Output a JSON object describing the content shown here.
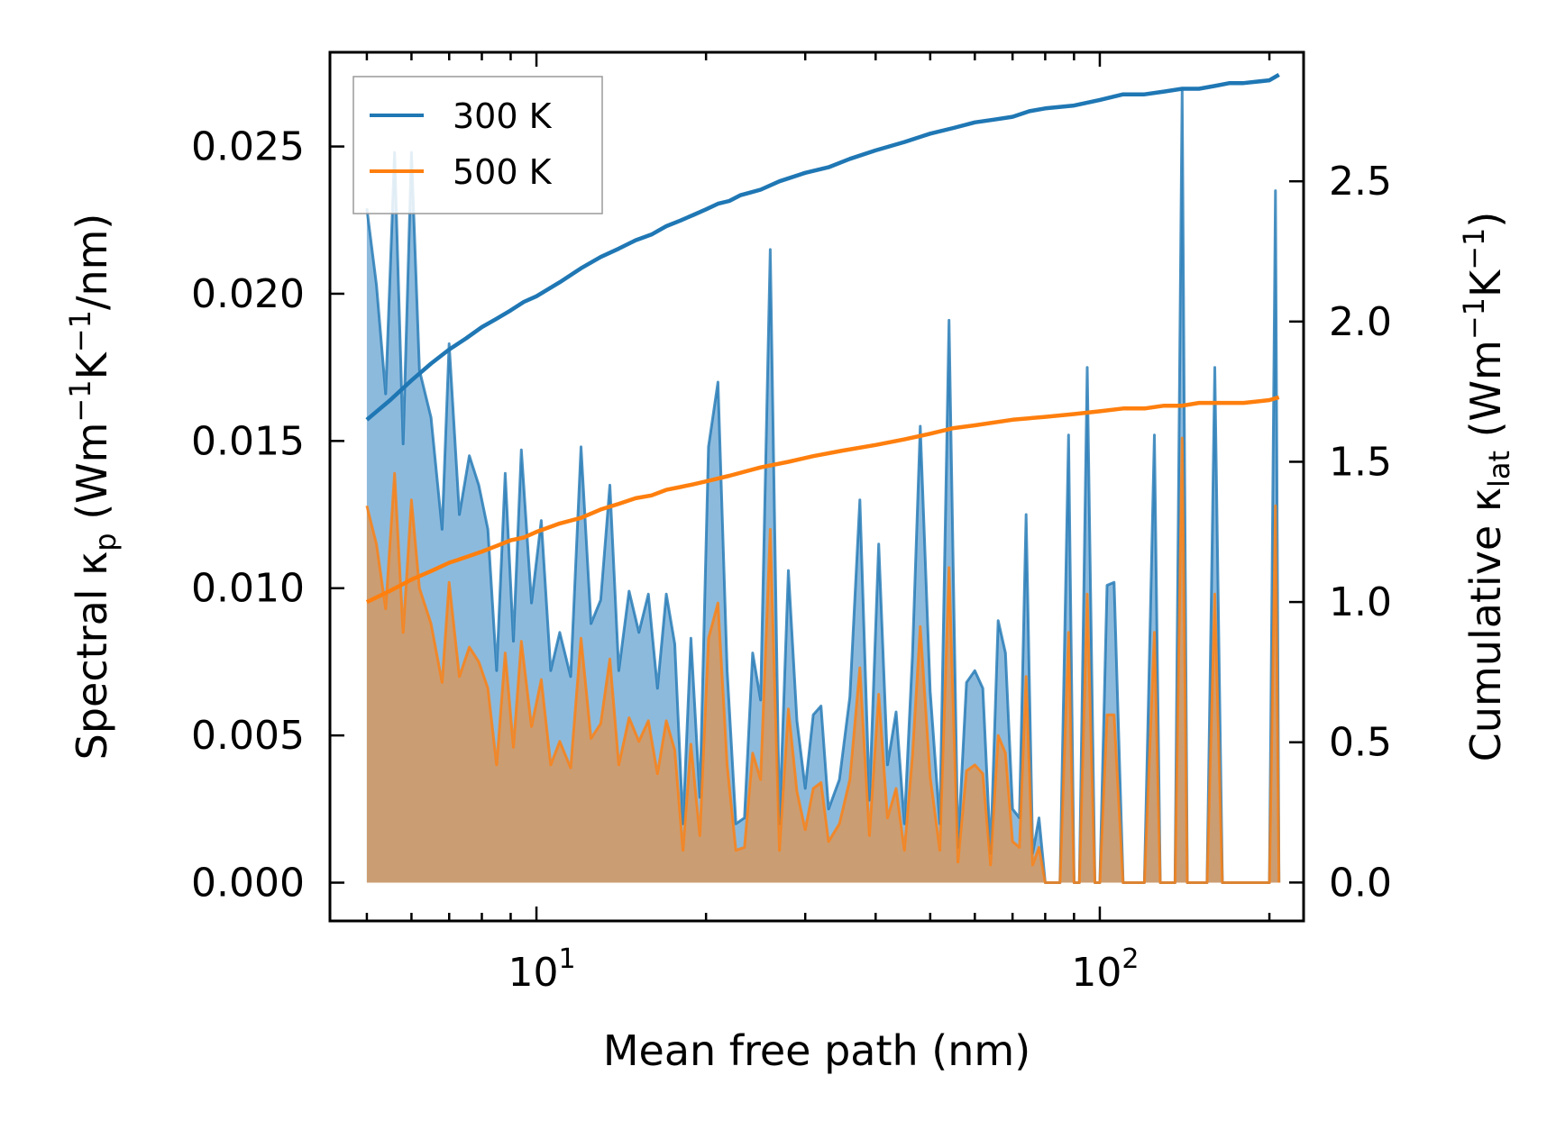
{
  "chart_data": {
    "type": "line",
    "title": "",
    "xlabel": "Mean free path (nm)",
    "xscale": "log",
    "xlim": [
      4.3,
      230
    ],
    "ylabel_left": {
      "main": "Spectral κ",
      "sub": "p",
      "rest": " (Wm",
      "sup1": "−1",
      "mid": "K",
      "sup2": "−1",
      "end": "/nm)"
    },
    "ylabel_right": {
      "main": "Cumulative κ",
      "sub": "lat",
      "rest": " (Wm",
      "sup1": "−1",
      "mid": "K",
      "sup2": "−1",
      "end": ")"
    },
    "ylim_left": [
      -0.0013,
      0.0282
    ],
    "ylim_right": [
      -0.137,
      2.96
    ],
    "x_ticks": [
      {
        "value": 10,
        "base": "10",
        "exp": "1"
      },
      {
        "value": 100,
        "base": "10",
        "exp": "2"
      }
    ],
    "y_left_ticks": [
      "0.000",
      "0.005",
      "0.010",
      "0.015",
      "0.020",
      "0.025"
    ],
    "y_left_tick_values": [
      0,
      0.005,
      0.01,
      0.015,
      0.02,
      0.025
    ],
    "y_right_ticks": [
      "0.0",
      "0.5",
      "1.0",
      "1.5",
      "2.0",
      "2.5"
    ],
    "y_right_tick_values": [
      0,
      0.5,
      1.0,
      1.5,
      2.0,
      2.5
    ],
    "legend": {
      "position": "upper-left",
      "entries": [
        "300 K",
        "500 K"
      ]
    },
    "colors": {
      "300 K": "#1f77b4",
      "500 K": "#ff7f0e",
      "fill_300": "#7fb2d9",
      "fill_500": "#d29a66"
    },
    "series": [
      {
        "name": "300 K",
        "axis": "left",
        "kind": "spectral",
        "x": [
          5.0,
          5.2,
          5.4,
          5.6,
          5.8,
          6.0,
          6.2,
          6.5,
          6.8,
          7.0,
          7.3,
          7.6,
          7.9,
          8.2,
          8.5,
          8.8,
          9.1,
          9.4,
          9.8,
          10.2,
          10.6,
          11.0,
          11.5,
          12.0,
          12.5,
          13.0,
          13.5,
          14.0,
          14.6,
          15.2,
          15.8,
          16.4,
          17.0,
          17.6,
          18.2,
          18.8,
          19.5,
          20.2,
          21.0,
          21.8,
          22.6,
          23.4,
          24.2,
          25.0,
          26.0,
          27.0,
          28.0,
          29.0,
          30.0,
          31.0,
          32.0,
          33.0,
          34.5,
          36.0,
          37.5,
          39.0,
          40.5,
          42.0,
          43.5,
          45.0,
          46.5,
          48.0,
          50.0,
          52.0,
          54.0,
          56.0,
          58.0,
          60.0,
          62.0,
          64.0,
          66.0,
          68.0,
          70.0,
          72.0,
          74.0,
          76.0,
          78.0,
          80.0,
          85.0,
          88.0,
          90.0,
          92.0,
          95.0,
          98.0,
          100.0,
          103.0,
          106.0,
          110.0,
          115.0,
          120.0,
          125.0,
          128.0,
          132.0,
          136.0,
          140.0,
          143.0,
          145.0,
          148.0,
          155.0,
          160.0,
          165.0,
          168.0,
          172.0,
          180.0,
          190.0,
          200.0,
          205.0,
          208.0
        ],
        "values": [
          0.0229,
          0.0203,
          0.0166,
          0.0248,
          0.0149,
          0.0248,
          0.0174,
          0.0158,
          0.012,
          0.0183,
          0.0125,
          0.0145,
          0.0135,
          0.012,
          0.0072,
          0.0139,
          0.0082,
          0.0147,
          0.0095,
          0.0123,
          0.0072,
          0.0085,
          0.007,
          0.0148,
          0.0088,
          0.0096,
          0.0135,
          0.0072,
          0.0099,
          0.0085,
          0.0098,
          0.0066,
          0.0098,
          0.0081,
          0.002,
          0.0083,
          0.0029,
          0.0148,
          0.017,
          0.0072,
          0.002,
          0.0022,
          0.0078,
          0.0062,
          0.0215,
          0.002,
          0.0106,
          0.0055,
          0.0032,
          0.0057,
          0.006,
          0.0025,
          0.0035,
          0.0063,
          0.013,
          0.0028,
          0.0115,
          0.004,
          0.0058,
          0.002,
          0.0077,
          0.0155,
          0.0065,
          0.002,
          0.0191,
          0.0012,
          0.0068,
          0.0072,
          0.0066,
          0.001,
          0.0089,
          0.0078,
          0.0025,
          0.0022,
          0.0125,
          0.001,
          0.0022,
          0.0,
          0.0,
          0.0152,
          0.0,
          0.0,
          0.0175,
          0.0,
          0.0,
          0.0101,
          0.0102,
          0.0,
          0.0,
          0.0,
          0.0152,
          0.0,
          0.0,
          0.0,
          0.0269,
          0.0,
          0.0,
          0.0,
          0.0,
          0.0175,
          0.0,
          0.0,
          0.0,
          0.0,
          0.0,
          0.0,
          0.0235,
          0.0
        ]
      },
      {
        "name": "500 K",
        "axis": "left",
        "kind": "spectral",
        "x": [
          5.0,
          5.2,
          5.4,
          5.6,
          5.8,
          6.0,
          6.2,
          6.5,
          6.8,
          7.0,
          7.3,
          7.6,
          7.9,
          8.2,
          8.5,
          8.8,
          9.1,
          9.4,
          9.8,
          10.2,
          10.6,
          11.0,
          11.5,
          12.0,
          12.5,
          13.0,
          13.5,
          14.0,
          14.6,
          15.2,
          15.8,
          16.4,
          17.0,
          17.6,
          18.2,
          18.8,
          19.5,
          20.2,
          21.0,
          21.8,
          22.6,
          23.4,
          24.2,
          25.0,
          26.0,
          27.0,
          28.0,
          29.0,
          30.0,
          31.0,
          32.0,
          33.0,
          34.5,
          36.0,
          37.5,
          39.0,
          40.5,
          42.0,
          43.5,
          45.0,
          46.5,
          48.0,
          50.0,
          52.0,
          54.0,
          56.0,
          58.0,
          60.0,
          62.0,
          64.0,
          66.0,
          68.0,
          70.0,
          72.0,
          74.0,
          76.0,
          78.0,
          80.0,
          85.0,
          88.0,
          90.0,
          92.0,
          95.0,
          98.0,
          100.0,
          103.0,
          106.0,
          110.0,
          115.0,
          120.0,
          125.0,
          128.0,
          132.0,
          136.0,
          140.0,
          143.0,
          145.0,
          148.0,
          155.0,
          160.0,
          165.0,
          168.0,
          172.0,
          180.0,
          190.0,
          200.0,
          205.0,
          208.0
        ],
        "values": [
          0.0128,
          0.0115,
          0.0093,
          0.0139,
          0.0085,
          0.013,
          0.01,
          0.0088,
          0.0068,
          0.0102,
          0.007,
          0.008,
          0.0075,
          0.0066,
          0.004,
          0.0078,
          0.0046,
          0.0082,
          0.0053,
          0.0069,
          0.004,
          0.0048,
          0.0039,
          0.0083,
          0.0049,
          0.0054,
          0.0076,
          0.004,
          0.0056,
          0.0048,
          0.0055,
          0.0037,
          0.0055,
          0.0045,
          0.0011,
          0.0047,
          0.0016,
          0.0083,
          0.0095,
          0.004,
          0.0011,
          0.0012,
          0.0044,
          0.0035,
          0.012,
          0.0011,
          0.0059,
          0.0031,
          0.0018,
          0.0032,
          0.0034,
          0.0014,
          0.002,
          0.0035,
          0.0073,
          0.0016,
          0.0064,
          0.0022,
          0.0032,
          0.0011,
          0.0043,
          0.0087,
          0.0036,
          0.0011,
          0.0107,
          0.0007,
          0.0038,
          0.004,
          0.0037,
          0.0006,
          0.005,
          0.0044,
          0.0014,
          0.0012,
          0.007,
          0.0006,
          0.0012,
          0.0,
          0.0,
          0.0085,
          0.0,
          0.0,
          0.0098,
          0.0,
          0.0,
          0.0057,
          0.0057,
          0.0,
          0.0,
          0.0,
          0.0085,
          0.0,
          0.0,
          0.0,
          0.0151,
          0.0,
          0.0,
          0.0,
          0.0,
          0.0098,
          0.0,
          0.0,
          0.0,
          0.0,
          0.0,
          0.0,
          0.0128,
          0.0
        ]
      },
      {
        "name": "300 K",
        "axis": "right",
        "kind": "cumulative",
        "x": [
          5.0,
          5.5,
          6.0,
          6.5,
          7.0,
          7.5,
          8.0,
          8.5,
          9.0,
          9.5,
          10.0,
          11.0,
          12.0,
          13.0,
          14.0,
          15.0,
          16.0,
          17.0,
          18.0,
          19.0,
          20.0,
          21.0,
          22.0,
          23.0,
          24.0,
          25.0,
          27.0,
          30.0,
          33.0,
          36.0,
          40.0,
          45.0,
          50.0,
          55.0,
          60.0,
          65.0,
          70.0,
          75.0,
          80.0,
          90.0,
          100.0,
          110.0,
          120.0,
          130.0,
          140.0,
          150.0,
          160.0,
          170.0,
          180.0,
          200.0,
          208.0
        ],
        "values": [
          1.65,
          1.72,
          1.79,
          1.85,
          1.9,
          1.94,
          1.98,
          2.01,
          2.04,
          2.07,
          2.09,
          2.14,
          2.19,
          2.23,
          2.26,
          2.29,
          2.31,
          2.34,
          2.36,
          2.38,
          2.4,
          2.42,
          2.43,
          2.45,
          2.46,
          2.47,
          2.5,
          2.53,
          2.55,
          2.58,
          2.61,
          2.64,
          2.67,
          2.69,
          2.71,
          2.72,
          2.73,
          2.75,
          2.76,
          2.77,
          2.79,
          2.81,
          2.81,
          2.82,
          2.83,
          2.83,
          2.84,
          2.85,
          2.85,
          2.86,
          2.88
        ]
      },
      {
        "name": "500 K",
        "axis": "right",
        "kind": "cumulative",
        "x": [
          5.0,
          5.5,
          6.0,
          6.5,
          7.0,
          7.5,
          8.0,
          8.5,
          9.0,
          9.5,
          10.0,
          11.0,
          12.0,
          13.0,
          14.0,
          15.0,
          16.0,
          17.0,
          18.0,
          19.0,
          20.0,
          22.0,
          25.0,
          28.0,
          31.0,
          35.0,
          40.0,
          45.0,
          50.0,
          55.0,
          60.0,
          70.0,
          80.0,
          90.0,
          100.0,
          110.0,
          120.0,
          130.0,
          140.0,
          150.0,
          160.0,
          170.0,
          180.0,
          200.0,
          208.0
        ],
        "values": [
          1.0,
          1.04,
          1.08,
          1.11,
          1.14,
          1.16,
          1.18,
          1.2,
          1.22,
          1.23,
          1.25,
          1.28,
          1.3,
          1.33,
          1.35,
          1.37,
          1.38,
          1.4,
          1.41,
          1.42,
          1.43,
          1.45,
          1.48,
          1.5,
          1.52,
          1.54,
          1.56,
          1.58,
          1.6,
          1.62,
          1.63,
          1.65,
          1.66,
          1.67,
          1.68,
          1.69,
          1.69,
          1.7,
          1.7,
          1.71,
          1.71,
          1.71,
          1.71,
          1.72,
          1.73
        ]
      }
    ]
  }
}
